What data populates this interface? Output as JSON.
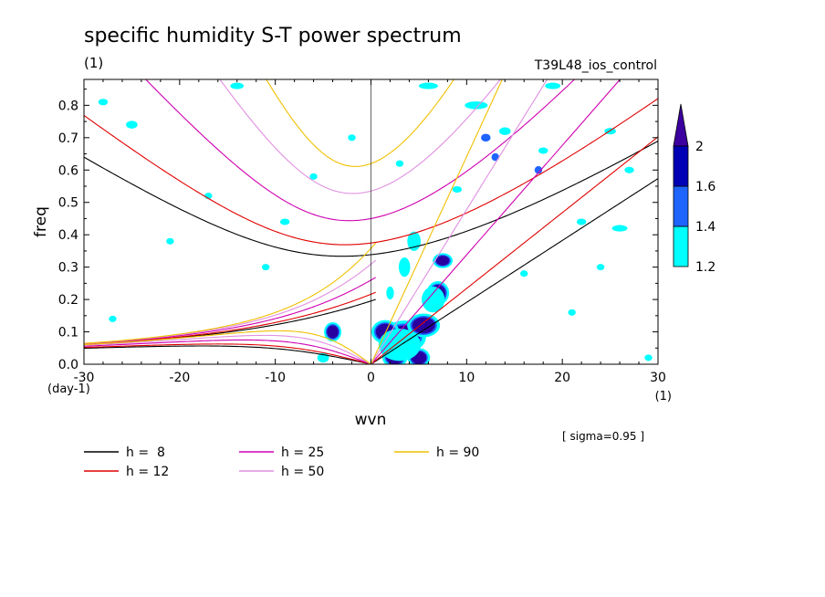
{
  "header": {
    "title": "specific humidity S-T power spectrum",
    "units_left": "(1)",
    "experiment": "T39L48_ios_control",
    "sigma_note": "[ sigma=0.95 ]"
  },
  "chart_data": {
    "type": "heatmap",
    "title": "specific humidity S-T power spectrum",
    "xlabel": "wvn",
    "ylabel": "freq",
    "x_unit_label": "(1)",
    "y_unit_label": "(day-1)",
    "xlim": [
      -30,
      30
    ],
    "ylim": [
      0,
      0.88
    ],
    "x_ticks": [
      -30,
      -20,
      -10,
      0,
      10,
      20,
      30
    ],
    "x_tick_labels": [
      "-30",
      "-20",
      "-10",
      "0",
      "10",
      "20",
      "30"
    ],
    "y_ticks": [
      0,
      0.1,
      0.2,
      0.3,
      0.4,
      0.5,
      0.6,
      0.7,
      0.8
    ],
    "y_tick_labels": [
      "0.0",
      "0.1",
      "0.2",
      "0.3",
      "0.4",
      "0.5",
      "0.6",
      "0.7",
      "0.8"
    ],
    "grid": false,
    "colorbar": {
      "levels": [
        1.2,
        1.4,
        1.6,
        2
      ],
      "level_labels": [
        "1.2",
        "1.4",
        "1.6",
        "2"
      ],
      "colors": [
        "#00ffff",
        "#1e64ff",
        "#0000b4",
        "#3c00a0"
      ]
    },
    "fill_colors": {
      "cyan": "#00ffff",
      "blue": "#1e64ff",
      "dark": "#2800a0"
    },
    "dispersion_curves": [
      {
        "name": "h =  8",
        "h": 8,
        "color": "#000000"
      },
      {
        "name": "h = 12",
        "h": 12,
        "color": "#e00000"
      },
      {
        "name": "h = 25",
        "h": 25,
        "color": "#d000b0"
      },
      {
        "name": "h = 50",
        "h": 50,
        "color": "#e090e0"
      },
      {
        "name": "h = 90",
        "h": 90,
        "color": "#f0c000"
      }
    ],
    "legend_placement": "bottom-left",
    "blobs": [
      {
        "x": 3.5,
        "y": 0.085,
        "rx": 1.6,
        "ry": 0.035,
        "c": "dark"
      },
      {
        "x": 1.5,
        "y": 0.1,
        "rx": 1.0,
        "ry": 0.025,
        "c": "dark"
      },
      {
        "x": 5.5,
        "y": 0.12,
        "rx": 1.2,
        "ry": 0.025,
        "c": "dark"
      },
      {
        "x": 7.0,
        "y": 0.22,
        "rx": 0.8,
        "ry": 0.025,
        "c": "dark"
      },
      {
        "x": 5.0,
        "y": 0.02,
        "rx": 0.8,
        "ry": 0.02,
        "c": "dark"
      },
      {
        "x": 2.5,
        "y": 0.02,
        "rx": 0.9,
        "ry": 0.02,
        "c": "dark"
      },
      {
        "x": -4.0,
        "y": 0.1,
        "rx": 0.6,
        "ry": 0.02,
        "c": "dark"
      },
      {
        "x": 7.5,
        "y": 0.32,
        "rx": 0.7,
        "ry": 0.015,
        "c": "dark"
      },
      {
        "x": 3.0,
        "y": 0.06,
        "rx": 2.2,
        "ry": 0.05,
        "c": "cyan"
      },
      {
        "x": 6.5,
        "y": 0.2,
        "rx": 1.2,
        "ry": 0.04,
        "c": "cyan"
      },
      {
        "x": 3.5,
        "y": 0.3,
        "rx": 0.6,
        "ry": 0.03,
        "c": "cyan"
      },
      {
        "x": 4.5,
        "y": 0.38,
        "rx": 0.7,
        "ry": 0.03,
        "c": "cyan"
      },
      {
        "x": 2.0,
        "y": 0.22,
        "rx": 0.4,
        "ry": 0.02,
        "c": "cyan"
      },
      {
        "x": -5.0,
        "y": 0.02,
        "rx": 0.6,
        "ry": 0.015,
        "c": "cyan"
      },
      {
        "x": 11.0,
        "y": 0.8,
        "rx": 1.2,
        "ry": 0.012,
        "c": "cyan"
      },
      {
        "x": 14.0,
        "y": 0.72,
        "rx": 0.6,
        "ry": 0.012,
        "c": "cyan"
      },
      {
        "x": 17.5,
        "y": 0.6,
        "rx": 0.4,
        "ry": 0.012,
        "c": "blue"
      },
      {
        "x": 13.0,
        "y": 0.64,
        "rx": 0.4,
        "ry": 0.012,
        "c": "blue"
      },
      {
        "x": 12.0,
        "y": 0.7,
        "rx": 0.5,
        "ry": 0.012,
        "c": "blue"
      },
      {
        "x": -25.0,
        "y": 0.74,
        "rx": 0.6,
        "ry": 0.012,
        "c": "cyan"
      },
      {
        "x": -28.0,
        "y": 0.81,
        "rx": 0.5,
        "ry": 0.01,
        "c": "cyan"
      },
      {
        "x": -14.0,
        "y": 0.86,
        "rx": 0.7,
        "ry": 0.01,
        "c": "cyan"
      },
      {
        "x": 6.0,
        "y": 0.86,
        "rx": 1.0,
        "ry": 0.01,
        "c": "cyan"
      },
      {
        "x": 19.0,
        "y": 0.86,
        "rx": 0.8,
        "ry": 0.01,
        "c": "cyan"
      },
      {
        "x": 25.0,
        "y": 0.72,
        "rx": 0.6,
        "ry": 0.01,
        "c": "cyan"
      },
      {
        "x": 27.0,
        "y": 0.6,
        "rx": 0.5,
        "ry": 0.01,
        "c": "cyan"
      },
      {
        "x": 22.0,
        "y": 0.44,
        "rx": 0.5,
        "ry": 0.01,
        "c": "cyan"
      },
      {
        "x": 26.0,
        "y": 0.42,
        "rx": 0.8,
        "ry": 0.01,
        "c": "cyan"
      },
      {
        "x": -9.0,
        "y": 0.44,
        "rx": 0.5,
        "ry": 0.01,
        "c": "cyan"
      },
      {
        "x": -17.0,
        "y": 0.52,
        "rx": 0.4,
        "ry": 0.01,
        "c": "cyan"
      },
      {
        "x": -21.0,
        "y": 0.38,
        "rx": 0.4,
        "ry": 0.01,
        "c": "cyan"
      },
      {
        "x": -11.0,
        "y": 0.3,
        "rx": 0.4,
        "ry": 0.01,
        "c": "cyan"
      },
      {
        "x": 16.0,
        "y": 0.28,
        "rx": 0.4,
        "ry": 0.01,
        "c": "cyan"
      },
      {
        "x": 21.0,
        "y": 0.16,
        "rx": 0.4,
        "ry": 0.01,
        "c": "cyan"
      },
      {
        "x": 29.0,
        "y": 0.02,
        "rx": 0.4,
        "ry": 0.01,
        "c": "cyan"
      },
      {
        "x": -27.0,
        "y": 0.14,
        "rx": 0.4,
        "ry": 0.01,
        "c": "cyan"
      },
      {
        "x": -6.0,
        "y": 0.58,
        "rx": 0.4,
        "ry": 0.01,
        "c": "cyan"
      },
      {
        "x": 3.0,
        "y": 0.62,
        "rx": 0.4,
        "ry": 0.01,
        "c": "cyan"
      },
      {
        "x": 9.0,
        "y": 0.54,
        "rx": 0.5,
        "ry": 0.01,
        "c": "cyan"
      },
      {
        "x": -2.0,
        "y": 0.7,
        "rx": 0.4,
        "ry": 0.01,
        "c": "cyan"
      },
      {
        "x": 18.0,
        "y": 0.66,
        "rx": 0.5,
        "ry": 0.01,
        "c": "cyan"
      },
      {
        "x": 24.0,
        "y": 0.3,
        "rx": 0.4,
        "ry": 0.01,
        "c": "cyan"
      }
    ]
  }
}
